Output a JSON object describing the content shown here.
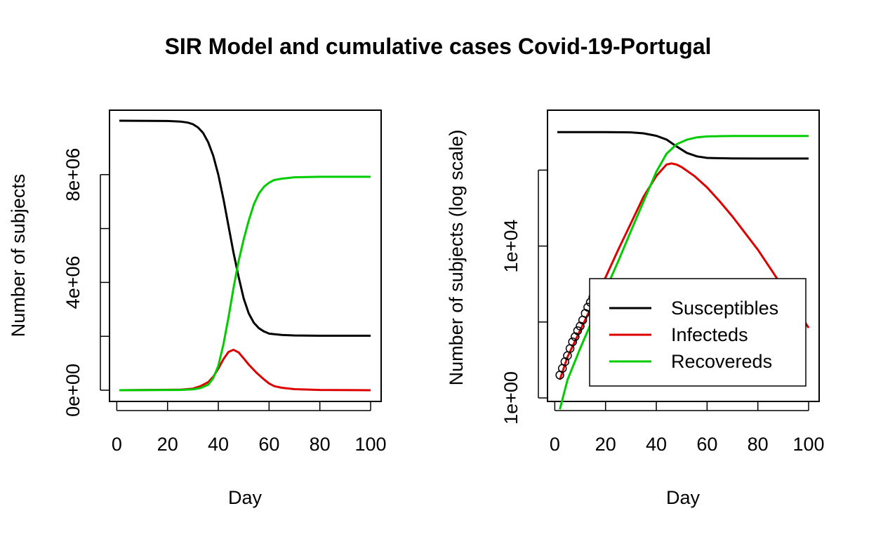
{
  "title": "SIR Model and cumulative cases Covid-19-Portugal",
  "colors": {
    "susceptibles": "#000000",
    "infecteds": "#dd0000",
    "recovereds": "#00cc00",
    "observed": "#000000"
  },
  "chart_data": [
    {
      "type": "line",
      "xlabel": "Day",
      "ylabel": "Number of subjects",
      "xlim": [
        1,
        100
      ],
      "ylim": [
        0,
        10000000
      ],
      "x_ticks": [
        0,
        20,
        40,
        60,
        80,
        100
      ],
      "x_tick_labels": [
        "0",
        "20",
        "40",
        "60",
        "80",
        "100"
      ],
      "y_ticks": [
        0,
        4000000,
        8000000
      ],
      "y_tick_labels": [
        "0e+00",
        "4e+06",
        "8e+06"
      ],
      "y_minor_ticks": [
        2000000,
        6000000
      ],
      "series": [
        {
          "name": "Susceptibles",
          "color": "#000000",
          "x": [
            1,
            20,
            25,
            28,
            30,
            32,
            34,
            36,
            38,
            40,
            42,
            44,
            46,
            48,
            50,
            52,
            54,
            56,
            58,
            60,
            65,
            70,
            80,
            90,
            100
          ],
          "y": [
            10000000,
            9990000,
            9970000,
            9930000,
            9870000,
            9750000,
            9550000,
            9200000,
            8700000,
            8000000,
            7100000,
            6100000,
            5100000,
            4200000,
            3400000,
            2850000,
            2500000,
            2300000,
            2180000,
            2100000,
            2050000,
            2030000,
            2020000,
            2020000,
            2020000
          ]
        },
        {
          "name": "Infecteds",
          "color": "#dd0000",
          "x": [
            1,
            25,
            30,
            33,
            36,
            38,
            40,
            42,
            44,
            46,
            48,
            50,
            52,
            55,
            58,
            60,
            62,
            65,
            70,
            80,
            100
          ],
          "y": [
            0,
            20000,
            60000,
            150000,
            300000,
            500000,
            800000,
            1150000,
            1420000,
            1500000,
            1400000,
            1180000,
            950000,
            650000,
            400000,
            250000,
            150000,
            90000,
            40000,
            10000,
            0
          ]
        },
        {
          "name": "Recovereds",
          "color": "#00cc00",
          "x": [
            1,
            25,
            30,
            33,
            36,
            38,
            40,
            42,
            44,
            46,
            48,
            50,
            52,
            54,
            56,
            58,
            60,
            62,
            65,
            70,
            80,
            100
          ],
          "y": [
            0,
            10000,
            30000,
            80000,
            200000,
            450000,
            900000,
            1700000,
            2700000,
            3800000,
            4800000,
            5600000,
            6300000,
            6900000,
            7300000,
            7550000,
            7700000,
            7800000,
            7850000,
            7900000,
            7920000,
            7920000
          ]
        }
      ]
    },
    {
      "type": "line",
      "y_scale": "log",
      "xlabel": "Day",
      "ylabel": "Number of subjects (log scale)",
      "xlim": [
        1,
        100
      ],
      "ylim": [
        1,
        20000000
      ],
      "x_ticks": [
        0,
        20,
        40,
        60,
        80,
        100
      ],
      "x_tick_labels": [
        "0",
        "20",
        "40",
        "60",
        "80",
        "100"
      ],
      "y_ticks": [
        1,
        10000
      ],
      "y_tick_labels": [
        "1e+00",
        "1e+04"
      ],
      "y_minor_ticks": [
        100,
        1000000
      ],
      "legend": {
        "position": "bottom-right",
        "entries": [
          "Susceptibles",
          "Infecteds",
          "Recovereds"
        ]
      },
      "series": [
        {
          "name": "Susceptibles",
          "color": "#000000",
          "x": [
            1,
            20,
            30,
            35,
            40,
            44,
            48,
            52,
            56,
            60,
            70,
            80,
            100
          ],
          "y": [
            10000000,
            9990000,
            9870000,
            9300000,
            8000000,
            6400000,
            4200000,
            2850000,
            2300000,
            2100000,
            2030000,
            2020000,
            2020000
          ]
        },
        {
          "name": "Infecteds",
          "color": "#dd0000",
          "x": [
            2,
            5,
            10,
            15,
            20,
            25,
            30,
            35,
            40,
            44,
            46,
            48,
            50,
            55,
            60,
            65,
            70,
            80,
            90,
            100
          ],
          "y": [
            3,
            12,
            60,
            300,
            1500,
            8000,
            40000,
            200000,
            700000,
            1400000,
            1500000,
            1400000,
            1200000,
            700000,
            350000,
            150000,
            60000,
            8000,
            800,
            70
          ]
        },
        {
          "name": "Recovereds",
          "color": "#00cc00",
          "x": [
            2,
            5,
            10,
            15,
            20,
            25,
            30,
            35,
            40,
            44,
            48,
            52,
            56,
            60,
            65,
            70,
            80,
            100
          ],
          "y": [
            0.5,
            3,
            20,
            120,
            700,
            4000,
            25000,
            150000,
            900000,
            2700000,
            4800000,
            6300000,
            7300000,
            7700000,
            7850000,
            7900000,
            7920000,
            7920000
          ]
        },
        {
          "name": "",
          "color": "#000000",
          "marker": "open-circle",
          "x": [
            2,
            3,
            4,
            5,
            6,
            7,
            8,
            9,
            10,
            11,
            12,
            13,
            14,
            15,
            16,
            17,
            18
          ],
          "y": [
            4,
            6,
            9,
            13,
            20,
            30,
            41,
            59,
            78,
            112,
            169,
            245,
            331,
            448,
            642,
            785,
            1020
          ]
        }
      ]
    }
  ]
}
